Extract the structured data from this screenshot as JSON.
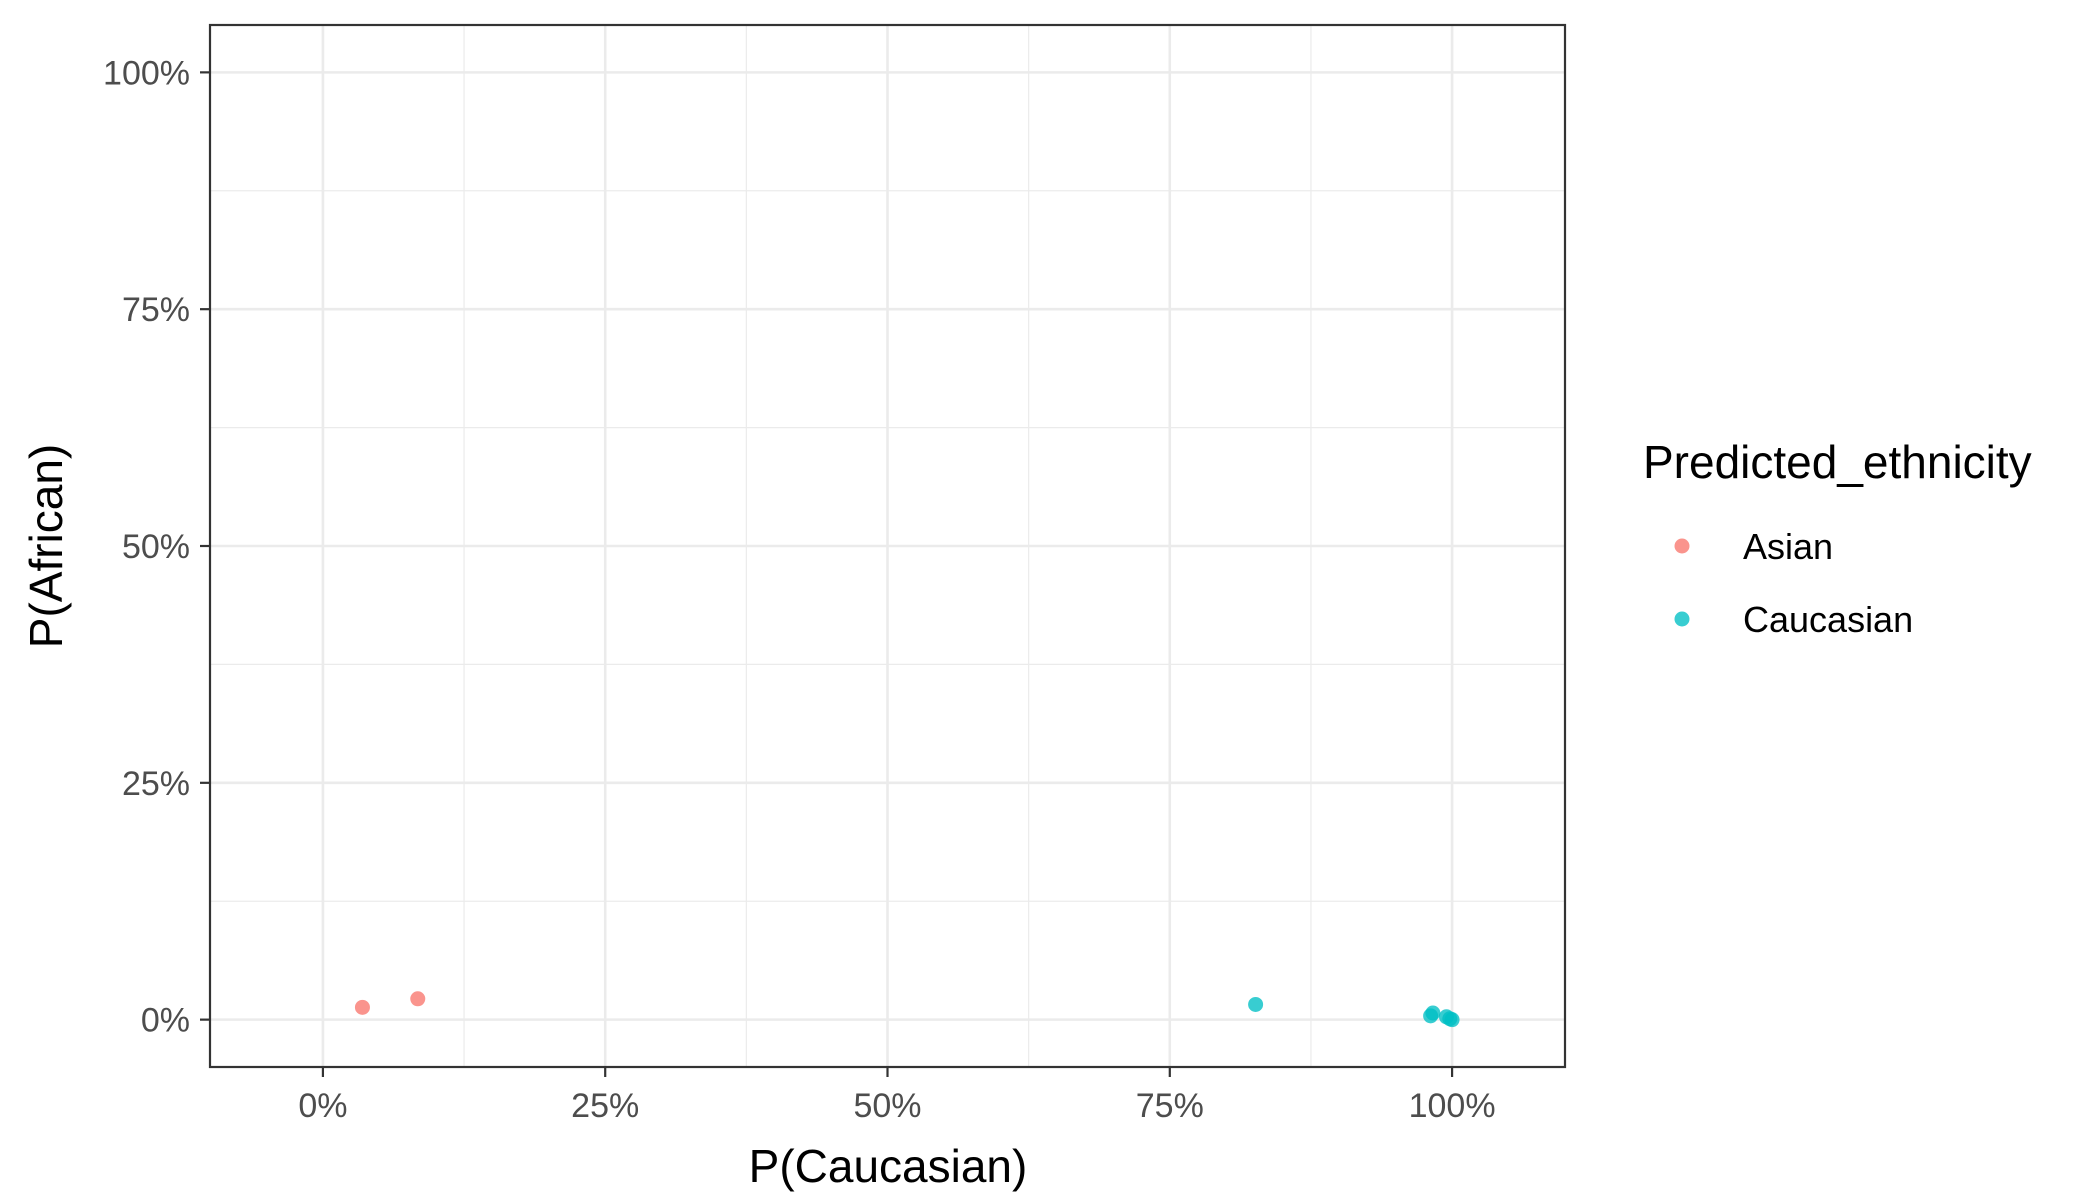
{
  "chart_data": {
    "type": "scatter",
    "title": "",
    "xlabel": "P(Caucasian)",
    "ylabel": "P(African)",
    "xlim": [
      -0.1,
      1.1
    ],
    "ylim": [
      -0.05,
      1.05
    ],
    "x_ticks": [
      0,
      0.25,
      0.5,
      0.75,
      1
    ],
    "x_tick_labels": [
      "0%",
      "25%",
      "50%",
      "75%",
      "100%"
    ],
    "y_ticks": [
      0,
      0.25,
      0.5,
      0.75,
      1
    ],
    "y_tick_labels": [
      "0%",
      "25%",
      "50%",
      "75%",
      "100%"
    ],
    "grid": true,
    "legend": {
      "title": "Predicted_ethnicity",
      "position": "right"
    },
    "series": [
      {
        "name": "Asian",
        "color": "#F8766D",
        "points": [
          {
            "x": 0.035,
            "y": 0.013
          },
          {
            "x": 0.084,
            "y": 0.022
          }
        ]
      },
      {
        "name": "Caucasian",
        "color": "#00BFC4",
        "points": [
          {
            "x": 0.826,
            "y": 0.016
          },
          {
            "x": 0.981,
            "y": 0.004
          },
          {
            "x": 0.983,
            "y": 0.007
          },
          {
            "x": 0.995,
            "y": 0.003
          },
          {
            "x": 0.998,
            "y": 0.001
          },
          {
            "x": 1.0,
            "y": 0.0
          }
        ]
      }
    ]
  }
}
